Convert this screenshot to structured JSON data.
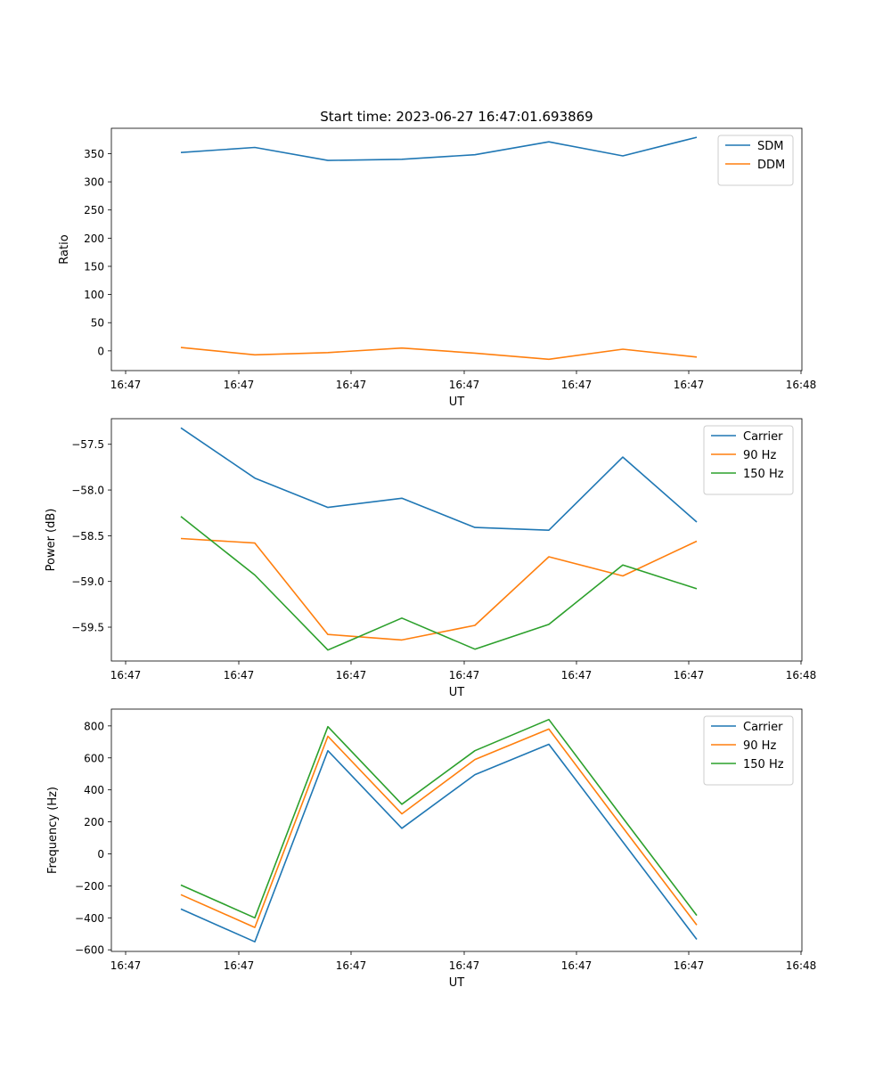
{
  "chart_data": [
    {
      "type": "line",
      "title": "Start time: 2023-06-27 16:47:01.693869",
      "xlabel": "UT",
      "ylabel": "Ratio",
      "x_tick_labels": [
        "16:47",
        "16:47",
        "16:47",
        "16:47",
        "16:47",
        "16:47",
        "16:48"
      ],
      "ylim": [
        -35,
        395
      ],
      "yticks": [
        0,
        50,
        100,
        150,
        200,
        250,
        300,
        350
      ],
      "legend_position": "top-right",
      "series": [
        {
          "name": "SDM",
          "color": "#1f77b4",
          "values": [
            352,
            361,
            338,
            340,
            348,
            371,
            346,
            379
          ]
        },
        {
          "name": "DDM",
          "color": "#ff7f0e",
          "values": [
            6,
            -7,
            -3,
            5,
            -4,
            -15,
            3,
            -11
          ]
        }
      ]
    },
    {
      "type": "line",
      "title": "",
      "xlabel": "UT",
      "ylabel": "Power (dB)",
      "x_tick_labels": [
        "16:47",
        "16:47",
        "16:47",
        "16:47",
        "16:47",
        "16:47",
        "16:48"
      ],
      "ylim": [
        -59.87,
        -57.22
      ],
      "yticks": [
        -59.5,
        -59.0,
        -58.5,
        -58.0,
        -57.5
      ],
      "ytick_labels": [
        "−59.5",
        "−59.0",
        "−58.5",
        "−58.0",
        "−57.5"
      ],
      "legend_position": "top-right",
      "series": [
        {
          "name": "Carrier",
          "color": "#1f77b4",
          "values": [
            -57.32,
            -57.87,
            -58.19,
            -58.09,
            -58.41,
            -58.44,
            -57.64,
            -58.35
          ]
        },
        {
          "name": "90 Hz",
          "color": "#ff7f0e",
          "values": [
            -58.53,
            -58.58,
            -59.58,
            -59.64,
            -59.48,
            -58.73,
            -58.94,
            -58.56
          ]
        },
        {
          "name": "150 Hz",
          "color": "#2ca02c",
          "values": [
            -58.29,
            -58.93,
            -59.75,
            -59.4,
            -59.74,
            -59.47,
            -58.82,
            -59.08
          ]
        }
      ]
    },
    {
      "type": "line",
      "title": "",
      "xlabel": "UT",
      "ylabel": "Frequency (Hz)",
      "x_tick_labels": [
        "16:47",
        "16:47",
        "16:47",
        "16:47",
        "16:47",
        "16:47",
        "16:48"
      ],
      "ylim": [
        -610,
        905
      ],
      "yticks": [
        -600,
        -400,
        -200,
        0,
        200,
        400,
        600,
        800
      ],
      "ytick_labels": [
        "−600",
        "−400",
        "−200",
        "0",
        "200",
        "400",
        "600",
        "800"
      ],
      "legend_position": "top-right",
      "series": [
        {
          "name": "Carrier",
          "color": "#1f77b4",
          "values": [
            -345,
            -550,
            645,
            160,
            495,
            685,
            75,
            -535
          ]
        },
        {
          "name": "90 Hz",
          "color": "#ff7f0e",
          "values": [
            -255,
            -460,
            735,
            250,
            590,
            780,
            165,
            -445
          ]
        },
        {
          "name": "150 Hz",
          "color": "#2ca02c",
          "values": [
            -195,
            -400,
            795,
            310,
            645,
            840,
            225,
            -385
          ]
        }
      ]
    }
  ]
}
